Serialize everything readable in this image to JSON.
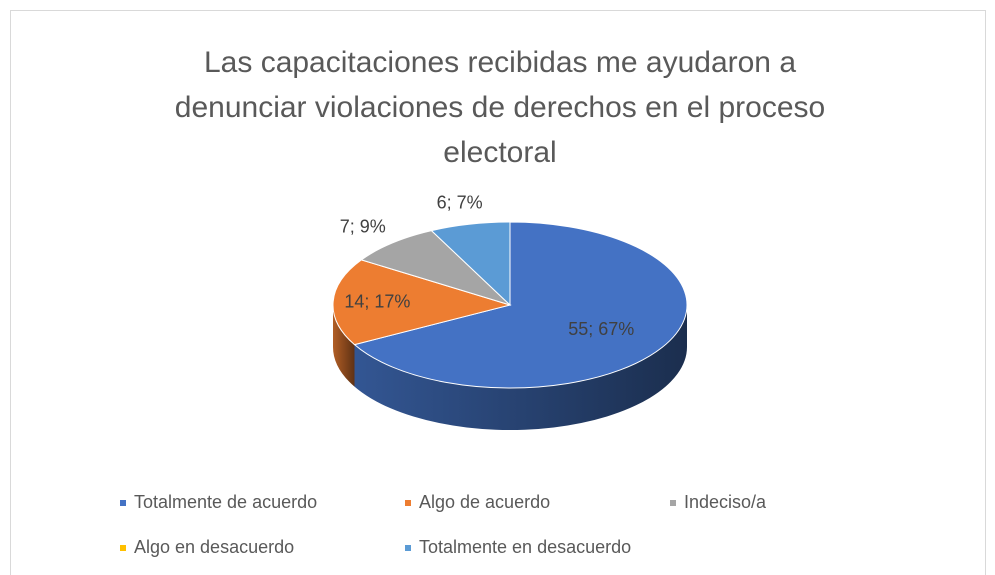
{
  "chart_data": {
    "type": "pie3d",
    "title": "Las capacitaciones recibidas me ayudaron a denunciar violaciones de derechos en el proceso electoral",
    "categories": [
      "Totalmente de acuerdo",
      "Algo de acuerdo",
      "Indeciso/a",
      "Algo en desacuerdo",
      "Totalmente en desacuerdo"
    ],
    "values": [
      55,
      14,
      7,
      0,
      6
    ],
    "value_labels": [
      "55; 67%",
      "14; 17%",
      "7; 9%",
      null,
      "6; 7%"
    ],
    "colors": [
      "#4472c4",
      "#ed7d31",
      "#a5a5a5",
      "#ffc000",
      "#5b9bd5"
    ],
    "legend": "bottom"
  }
}
